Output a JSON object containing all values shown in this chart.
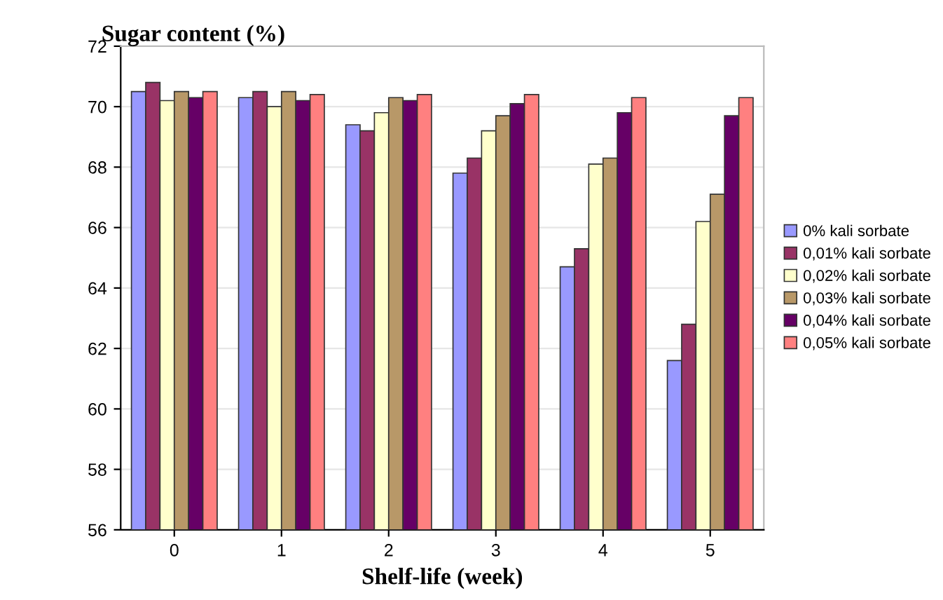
{
  "chart_data": {
    "type": "bar",
    "xlabel": "Shelf-life (week)",
    "ylabel": "Sugar content (%)",
    "categories": [
      "0",
      "1",
      "2",
      "3",
      "4",
      "5"
    ],
    "series": [
      {
        "name": "0% kali sorbate",
        "color": "#9999ff",
        "values": [
          70.5,
          70.3,
          69.4,
          67.8,
          64.7,
          61.6
        ]
      },
      {
        "name": "0,01% kali sorbate",
        "color": "#993366",
        "values": [
          70.8,
          70.5,
          69.2,
          68.3,
          65.3,
          62.8
        ]
      },
      {
        "name": "0,02% kali sorbate",
        "color": "#ffffcc",
        "values": [
          70.2,
          70.0,
          69.8,
          69.2,
          68.1,
          66.2
        ]
      },
      {
        "name": "0,03% kali sorbate",
        "color": "#b89868",
        "values": [
          70.5,
          70.5,
          70.3,
          69.7,
          68.3,
          67.1
        ]
      },
      {
        "name": "0,04% kali sorbate",
        "color": "#660066",
        "values": [
          70.3,
          70.2,
          70.2,
          70.1,
          69.8,
          69.7
        ]
      },
      {
        "name": "0,05% kali sorbate",
        "color": "#ff8080",
        "values": [
          70.5,
          70.4,
          70.4,
          70.4,
          70.3,
          70.3
        ]
      }
    ],
    "ylim": [
      56,
      72
    ],
    "yticks": [
      56,
      58,
      60,
      62,
      64,
      66,
      68,
      70,
      72
    ],
    "grid": "y",
    "legend": "right"
  }
}
